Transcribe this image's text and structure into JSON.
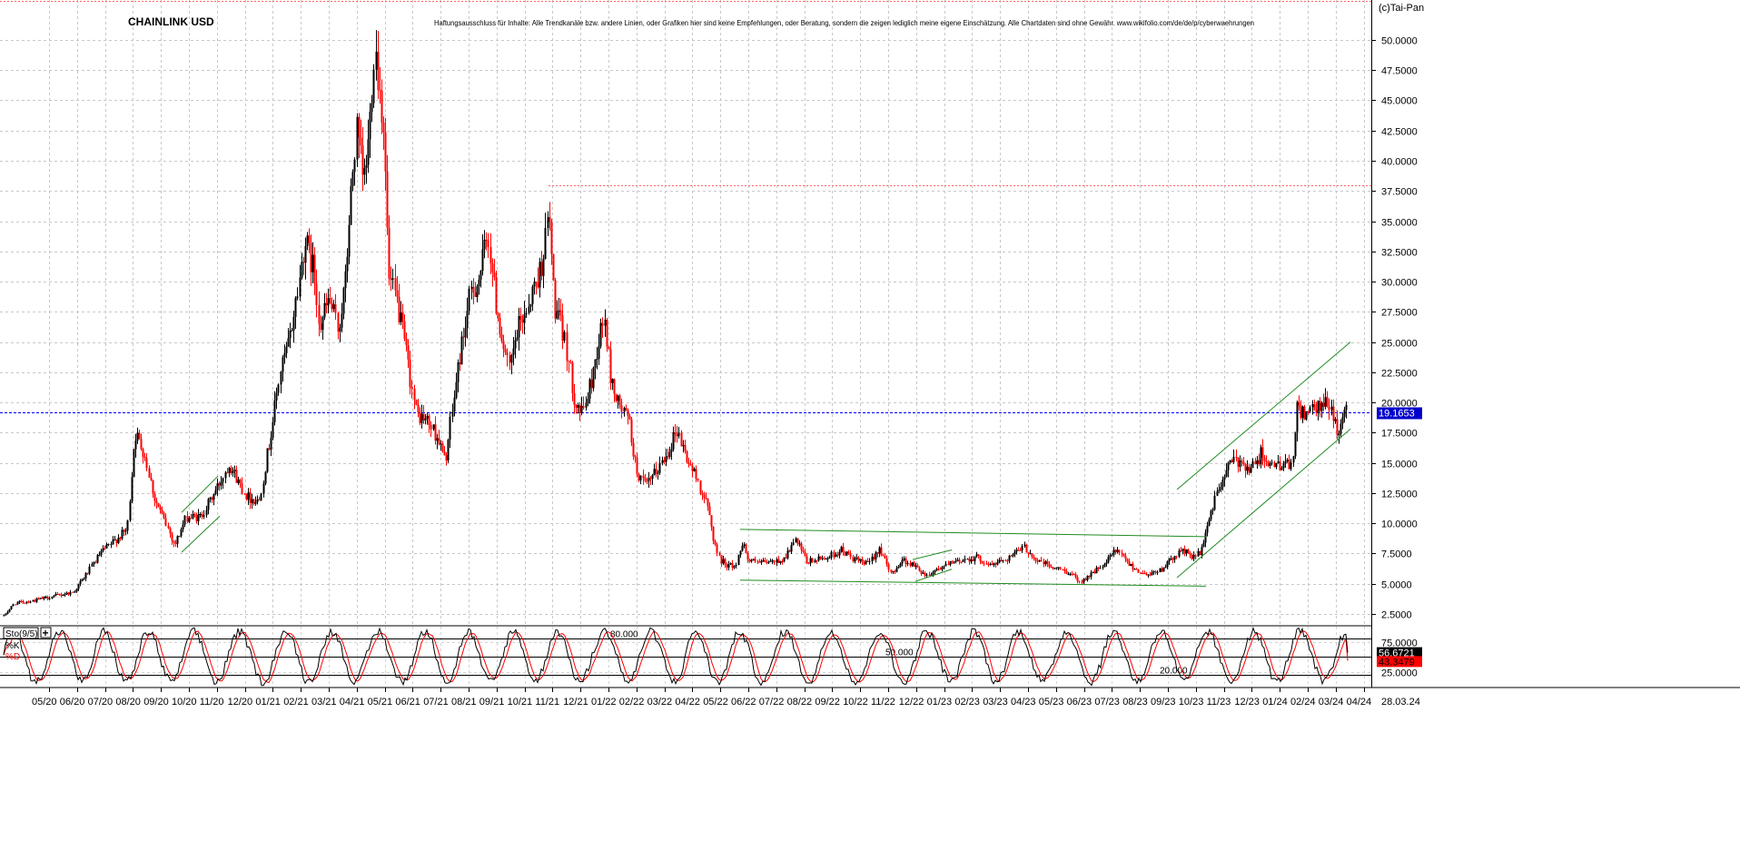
{
  "header": {
    "title": "CHAINLINK USD",
    "disclaimer": "Haftungsausschluss für Inhalte: Alle Trendkanäle bzw. andere Linien, oder Grafiken hier sind keine Empfehlungen, oder Beratung, sondern die zeigen lediglich meine eigene Einschätzung. Alle Chartdaten sind ohne Gewähr. www.wikifolio.com/de/de/p/cyberwaehrungen",
    "copyright": "(c)Tai-Pan"
  },
  "chart_data": [
    {
      "type": "candlestick",
      "title": "CHAINLINK USD",
      "ylim": [
        1.6,
        53.3
      ],
      "y_ticks": [
        "2.5000",
        "5.0000",
        "7.5000",
        "10.0000",
        "12.5000",
        "15.0000",
        "17.5000",
        "20.0000",
        "22.5000",
        "25.0000",
        "27.5000",
        "30.0000",
        "32.5000",
        "35.0000",
        "37.5000",
        "40.0000",
        "42.5000",
        "45.0000",
        "47.5000",
        "50.0000"
      ],
      "last_price": 19.1653,
      "last_price_label": "19.1653",
      "resistance": 38.0,
      "up_color": "#000000",
      "down_color": "#ff0000",
      "grid": true,
      "x_labels": [
        "05/20",
        "06/20",
        "07/20",
        "08/20",
        "09/20",
        "10/20",
        "11/20",
        "12/20",
        "01/21",
        "02/21",
        "03/21",
        "04/21",
        "05/21",
        "06/21",
        "07/21",
        "08/21",
        "09/21",
        "10/21",
        "11/21",
        "12/21",
        "01/22",
        "02/22",
        "03/22",
        "04/22",
        "05/22",
        "06/22",
        "07/22",
        "08/22",
        "09/22",
        "10/22",
        "11/22",
        "12/22",
        "01/23",
        "02/23",
        "03/23",
        "04/23",
        "05/23",
        "06/23",
        "07/23",
        "08/23",
        "09/23",
        "10/23",
        "11/23",
        "12/23",
        "01/24",
        "02/24",
        "03/24",
        "04/24"
      ],
      "x_end_label": "28.03.24",
      "anchors": [
        [
          0,
          2.0
        ],
        [
          16,
          3.4
        ],
        [
          36,
          3.6
        ],
        [
          60,
          4.0
        ],
        [
          80,
          4.3
        ],
        [
          95,
          5.8
        ],
        [
          110,
          7.5
        ],
        [
          125,
          8.5
        ],
        [
          140,
          9.5
        ],
        [
          148,
          17.5
        ],
        [
          158,
          16.0
        ],
        [
          170,
          12.0
        ],
        [
          185,
          9.5
        ],
        [
          192,
          8.2
        ],
        [
          205,
          10.5
        ],
        [
          220,
          10.5
        ],
        [
          238,
          12.8
        ],
        [
          252,
          15.0
        ],
        [
          262,
          13.5
        ],
        [
          272,
          12.2
        ],
        [
          285,
          11.8
        ],
        [
          298,
          17.5
        ],
        [
          308,
          22.5
        ],
        [
          318,
          25.0
        ],
        [
          330,
          30.5
        ],
        [
          335,
          33.5
        ],
        [
          345,
          31.0
        ],
        [
          352,
          26.5
        ],
        [
          362,
          28.5
        ],
        [
          372,
          26.0
        ],
        [
          380,
          30.0
        ],
        [
          385,
          36.0
        ],
        [
          392,
          42.5
        ],
        [
          400,
          38.0
        ],
        [
          406,
          42.0
        ],
        [
          412,
          50.0
        ],
        [
          416,
          47.0
        ],
        [
          422,
          43.0
        ],
        [
          428,
          30.0
        ],
        [
          436,
          28.5
        ],
        [
          446,
          24.5
        ],
        [
          458,
          19.0
        ],
        [
          470,
          18.5
        ],
        [
          482,
          17.0
        ],
        [
          490,
          15.0
        ],
        [
          496,
          18.5
        ],
        [
          506,
          24.0
        ],
        [
          518,
          29.0
        ],
        [
          528,
          30.5
        ],
        [
          537,
          34.0
        ],
        [
          545,
          28.5
        ],
        [
          552,
          25.5
        ],
        [
          560,
          22.5
        ],
        [
          570,
          26.0
        ],
        [
          580,
          28.0
        ],
        [
          595,
          31.0
        ],
        [
          604,
          35.5
        ],
        [
          610,
          28.0
        ],
        [
          622,
          25.0
        ],
        [
          632,
          20.5
        ],
        [
          640,
          19.0
        ],
        [
          650,
          21.5
        ],
        [
          660,
          25.5
        ],
        [
          665,
          27.0
        ],
        [
          672,
          22.0
        ],
        [
          680,
          20.0
        ],
        [
          692,
          18.5
        ],
        [
          700,
          14.5
        ],
        [
          710,
          13.0
        ],
        [
          720,
          14.0
        ],
        [
          732,
          15.5
        ],
        [
          745,
          17.8
        ],
        [
          755,
          15.5
        ],
        [
          768,
          13.5
        ],
        [
          780,
          11.0
        ],
        [
          786,
          8.5
        ],
        [
          792,
          7.0
        ],
        [
          802,
          6.5
        ],
        [
          810,
          6.5
        ],
        [
          818,
          8.8
        ],
        [
          822,
          7.0
        ],
        [
          835,
          6.7
        ],
        [
          850,
          6.8
        ],
        [
          862,
          7.0
        ],
        [
          876,
          8.6
        ],
        [
          888,
          6.8
        ],
        [
          900,
          7.0
        ],
        [
          914,
          7.3
        ],
        [
          926,
          7.8
        ],
        [
          940,
          7.0
        ],
        [
          955,
          6.6
        ],
        [
          968,
          8.0
        ],
        [
          980,
          5.8
        ],
        [
          994,
          7.0
        ],
        [
          1006,
          6.5
        ],
        [
          1020,
          5.7
        ],
        [
          1030,
          6.2
        ],
        [
          1045,
          6.6
        ],
        [
          1060,
          7.0
        ],
        [
          1075,
          7.2
        ],
        [
          1090,
          6.5
        ],
        [
          1110,
          7.2
        ],
        [
          1128,
          8.0
        ],
        [
          1140,
          7.0
        ],
        [
          1160,
          6.3
        ],
        [
          1175,
          6.0
        ],
        [
          1190,
          5.2
        ],
        [
          1202,
          5.9
        ],
        [
          1215,
          6.5
        ],
        [
          1228,
          7.8
        ],
        [
          1242,
          6.7
        ],
        [
          1258,
          5.8
        ],
        [
          1275,
          6.0
        ],
        [
          1290,
          7.0
        ],
        [
          1300,
          7.8
        ],
        [
          1312,
          7.3
        ],
        [
          1322,
          7.5
        ],
        [
          1328,
          9.7
        ],
        [
          1340,
          12.5
        ],
        [
          1352,
          14.8
        ],
        [
          1365,
          15.2
        ],
        [
          1378,
          14.5
        ],
        [
          1390,
          16.0
        ],
        [
          1400,
          14.5
        ],
        [
          1412,
          15.0
        ],
        [
          1422,
          14.5
        ],
        [
          1428,
          19.5
        ],
        [
          1440,
          19.0
        ],
        [
          1452,
          19.5
        ],
        [
          1464,
          20.0
        ],
        [
          1472,
          17.5
        ],
        [
          1480,
          19.0
        ],
        [
          1484,
          19.2
        ]
      ],
      "trend_lines": [
        {
          "color": "#228b22",
          "from": [
            200,
            10.9
          ],
          "to": [
            240,
            13.9
          ]
        },
        {
          "color": "#228b22",
          "from": [
            200,
            7.6
          ],
          "to": [
            242,
            10.6
          ]
        },
        {
          "color": "#228b22",
          "from": [
            815,
            9.5
          ],
          "to": [
            1328,
            8.9
          ]
        },
        {
          "color": "#228b22",
          "from": [
            815,
            5.3
          ],
          "to": [
            1328,
            4.8
          ]
        },
        {
          "color": "#228b22",
          "from": [
            1005,
            7.0
          ],
          "to": [
            1048,
            7.8
          ]
        },
        {
          "color": "#228b22",
          "from": [
            1008,
            5.2
          ],
          "to": [
            1048,
            6.2
          ]
        },
        {
          "color": "#228b22",
          "from": [
            1296,
            12.8
          ],
          "to": [
            1487,
            25.0
          ]
        },
        {
          "color": "#228b22",
          "from": [
            1296,
            5.5
          ],
          "to": [
            1487,
            17.8
          ]
        }
      ]
    },
    {
      "type": "line",
      "title": "Sto(9/5)",
      "ylim": [
        0,
        100
      ],
      "levels": [
        80,
        50,
        20
      ],
      "level_labels": [
        "80.000",
        "50.000",
        "20.000"
      ],
      "y_ticks": [
        "75.0000",
        "25.0000"
      ],
      "series": [
        {
          "name": "%K",
          "color": "#000000",
          "last": 56.6721,
          "last_label": "56.6721"
        },
        {
          "name": "%D",
          "color": "#ff0000",
          "last": 43.3479,
          "last_label": "43.3479"
        }
      ]
    }
  ]
}
